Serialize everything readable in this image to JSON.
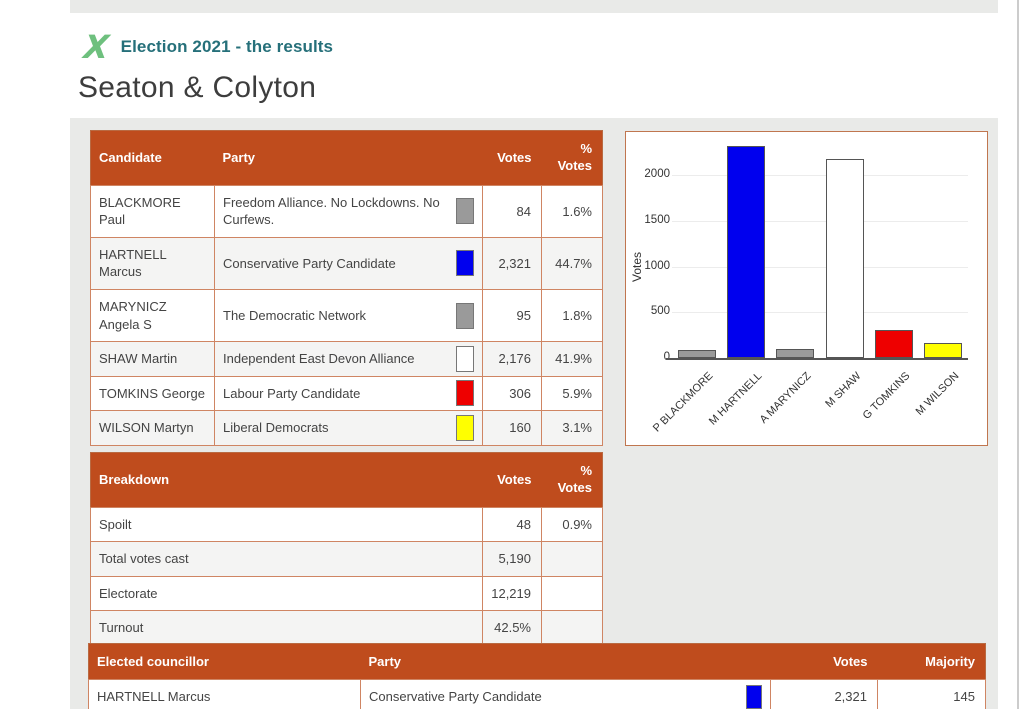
{
  "header": {
    "logo_glyph": "X",
    "eyebrow": "Election 2021 - the results",
    "title": "Seaton & Colyton"
  },
  "results_table": {
    "headers": {
      "candidate": "Candidate",
      "party": "Party",
      "votes": "Votes",
      "pct_top": "%",
      "pct_bottom": "Votes"
    },
    "rows": [
      {
        "candidate": "BLACKMORE Paul",
        "party": "Freedom Alliance. No Lockdowns. No Curfews.",
        "color": "#9a9a9a",
        "votes": "84",
        "pct": "1.6%"
      },
      {
        "candidate": "HARTNELL Marcus",
        "party": "Conservative Party Candidate",
        "color": "#0000ee",
        "votes": "2,321",
        "pct": "44.7%"
      },
      {
        "candidate": "MARYNICZ Angela S",
        "party": "The Democratic Network",
        "color": "#9a9a9a",
        "votes": "95",
        "pct": "1.8%"
      },
      {
        "candidate": "SHAW Martin",
        "party": "Independent East Devon Alliance",
        "color": "#ffffff",
        "votes": "2,176",
        "pct": "41.9%"
      },
      {
        "candidate": "TOMKINS George",
        "party": "Labour Party Candidate",
        "color": "#ee0000",
        "votes": "306",
        "pct": "5.9%"
      },
      {
        "candidate": "WILSON Martyn",
        "party": "Liberal Democrats",
        "color": "#ffff00",
        "votes": "160",
        "pct": "3.1%"
      }
    ]
  },
  "breakdown_table": {
    "headers": {
      "label": "Breakdown",
      "votes": "Votes",
      "pct_top": "%",
      "pct_bottom": "Votes"
    },
    "rows": [
      {
        "label": "Spoilt",
        "votes": "48",
        "pct": "0.9%"
      },
      {
        "label": "Total votes cast",
        "votes": "5,190",
        "pct": ""
      },
      {
        "label": "Electorate",
        "votes": "12,219",
        "pct": ""
      },
      {
        "label": "Turnout",
        "votes": "42.5%",
        "pct": ""
      }
    ]
  },
  "elected_table": {
    "headers": {
      "name": "Elected councillor",
      "party": "Party",
      "votes": "Votes",
      "majority": "Majority"
    },
    "rows": [
      {
        "name": "HARTNELL Marcus",
        "party": "Conservative Party Candidate",
        "color": "#0000ee",
        "votes": "2,321",
        "majority": "145"
      }
    ]
  },
  "chart_data": {
    "type": "bar",
    "title": "",
    "categories": [
      "P BLACKMORE",
      "M HARTNELL",
      "A MARYNICZ",
      "M SHAW",
      "G TOMKINS",
      "M WILSON"
    ],
    "values": [
      84,
      2321,
      95,
      2176,
      306,
      160
    ],
    "colors": [
      "#9a9a9a",
      "#0000ee",
      "#9a9a9a",
      "#ffffff",
      "#ee0000",
      "#ffff00"
    ],
    "xlabel": "",
    "ylabel": "Votes",
    "yticks": [
      0,
      500,
      1000,
      1500,
      2000
    ],
    "ylim": [
      0,
      2470
    ],
    "grid": true,
    "legend": false
  },
  "colors": {
    "accent": "#bf4c1d",
    "table-border": "#cf8563",
    "page-bg": "#e9eae8",
    "alt-row": "#f4f4f3",
    "eyebrow": "#26707a",
    "logo-green": "#6ec07e",
    "title-text": "#3d3d3d"
  }
}
